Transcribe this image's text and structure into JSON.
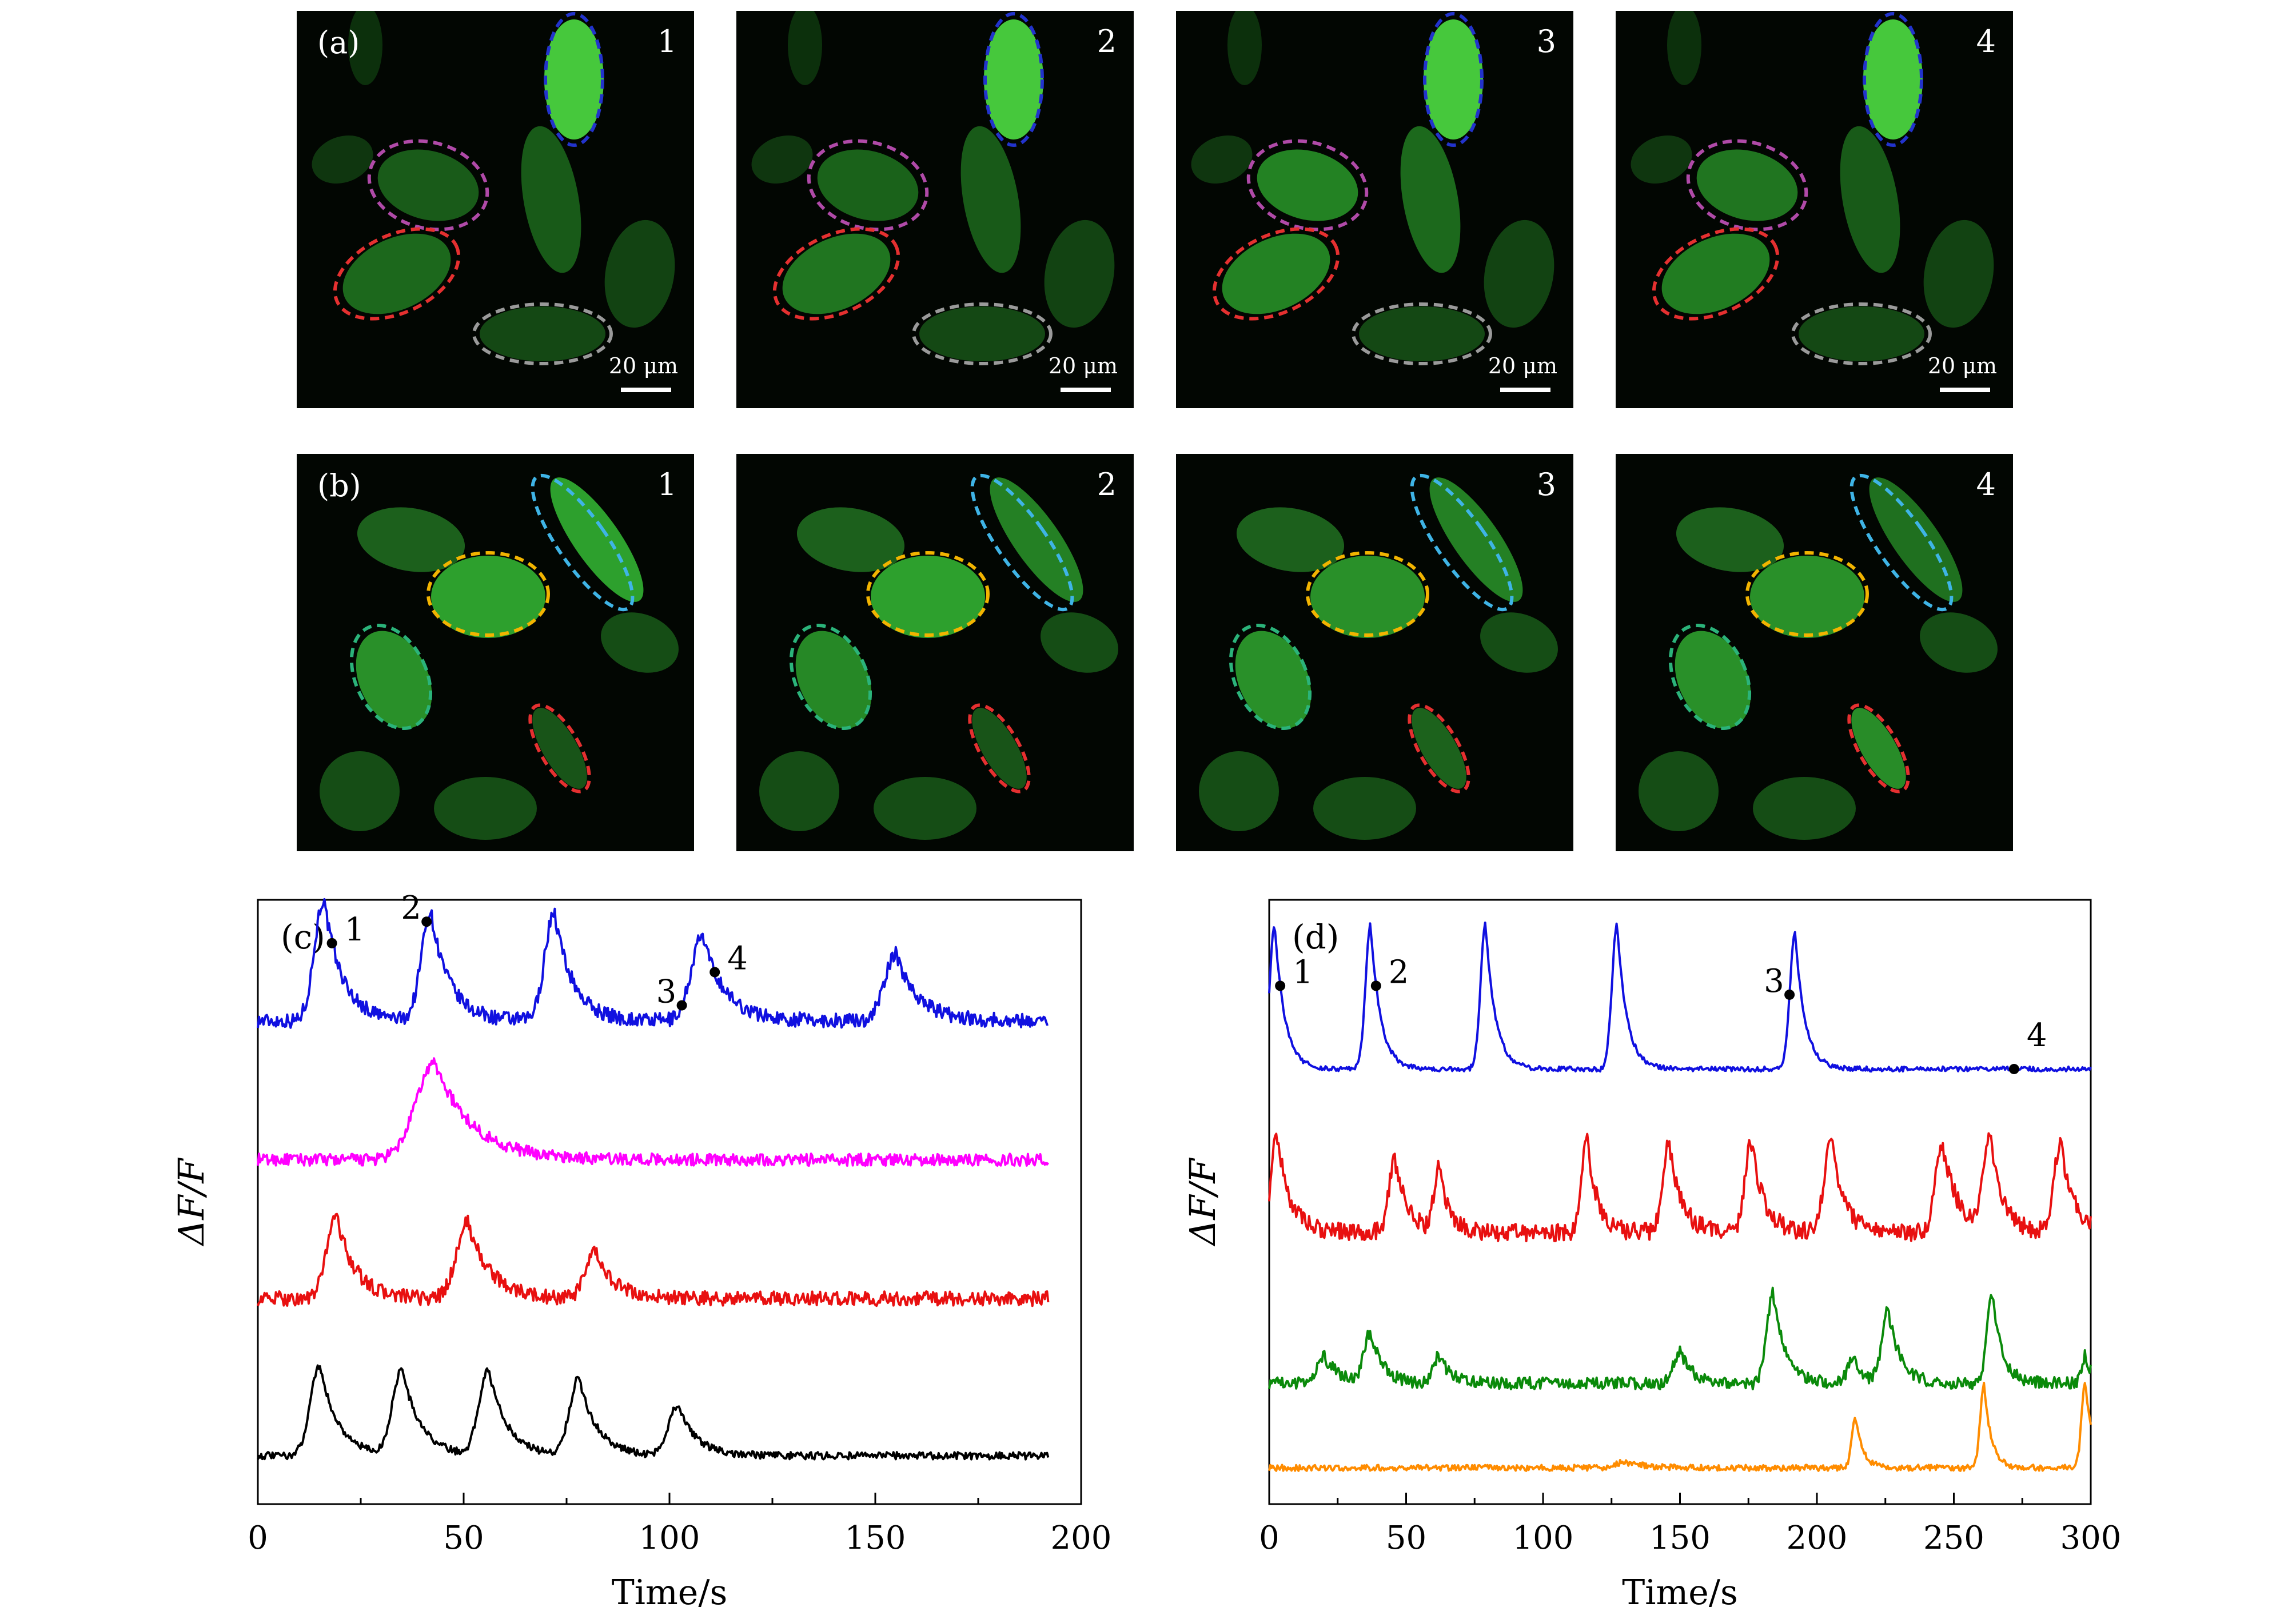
{
  "figure": {
    "row_a": {
      "label": "(a)",
      "frames": [
        "1",
        "2",
        "3",
        "4"
      ],
      "scale": "20 μm",
      "roi_colors": [
        "#2233cc",
        "#b04aa8",
        "#e53030",
        "#9a9a9a"
      ]
    },
    "row_b": {
      "label": "(b)",
      "frames": [
        "1",
        "2",
        "3",
        "4"
      ],
      "roi_colors": [
        "#3fb4e6",
        "#f2b400",
        "#2bb37a",
        "#e53030"
      ]
    }
  },
  "chart_data": [
    {
      "type": "line",
      "panel_label": "(c)",
      "xlabel": "Time/s",
      "ylabel": "ΔF/F",
      "xlim": [
        0,
        200
      ],
      "xticks": [
        "0",
        "50",
        "100",
        "150",
        "200"
      ],
      "yticks_shown": false,
      "series": [
        {
          "color": "#1010e0",
          "baseline": 0.8,
          "amplitude": 0.2,
          "noise": 0.012,
          "peaks": [
            [
              16,
              5
            ],
            [
              42,
              5
            ],
            [
              72,
              5
            ],
            [
              108,
              6
            ],
            [
              155,
              6
            ]
          ],
          "heights": [
            1.0,
            0.9,
            0.9,
            0.7,
            0.55
          ]
        },
        {
          "color": "#ff00ff",
          "baseline": 0.57,
          "amplitude": 0.16,
          "noise": 0.01,
          "peaks": [
            [
              43,
              10
            ]
          ],
          "heights": [
            1.0
          ]
        },
        {
          "color": "#e81010",
          "baseline": 0.34,
          "amplitude": 0.14,
          "noise": 0.012,
          "peaks": [
            [
              19,
              5
            ],
            [
              51,
              6
            ],
            [
              82,
              5
            ]
          ],
          "heights": [
            1.0,
            0.9,
            0.55
          ]
        },
        {
          "color": "#000000",
          "baseline": 0.08,
          "amplitude": 0.15,
          "noise": 0.006,
          "peaks": [
            [
              15,
              5
            ],
            [
              35,
              5
            ],
            [
              56,
              5
            ],
            [
              78,
              5
            ],
            [
              102,
              5
            ]
          ],
          "heights": [
            1.0,
            0.95,
            0.95,
            0.85,
            0.55
          ]
        }
      ],
      "markers": [
        {
          "label": "1",
          "x": 18
        },
        {
          "label": "2",
          "x": 41
        },
        {
          "label": "3",
          "x": 103
        },
        {
          "label": "4",
          "x": 111
        }
      ]
    },
    {
      "type": "line",
      "panel_label": "(d)",
      "xlabel": "Time/s",
      "ylabel": "ΔF/F",
      "xlim": [
        0,
        300
      ],
      "xticks": [
        "0",
        "50",
        "100",
        "150",
        "200",
        "250",
        "300"
      ],
      "yticks_shown": false,
      "series": [
        {
          "color": "#1010e0",
          "baseline": 0.72,
          "amplitude": 0.24,
          "noise": 0.004,
          "peaks": [
            [
              2,
              4
            ],
            [
              37,
              4
            ],
            [
              79,
              4
            ],
            [
              127,
              4
            ],
            [
              192,
              4
            ]
          ],
          "heights": [
            1.0,
            1.0,
            1.0,
            1.0,
            0.95
          ]
        },
        {
          "color": "#e81010",
          "baseline": 0.45,
          "amplitude": 0.16,
          "noise": 0.015,
          "peaks": [
            [
              3,
              5
            ],
            [
              46,
              5
            ],
            [
              62,
              4
            ],
            [
              116,
              4
            ],
            [
              146,
              5
            ],
            [
              176,
              5
            ],
            [
              205,
              5
            ],
            [
              246,
              6
            ],
            [
              263,
              5
            ],
            [
              289,
              5
            ]
          ],
          "heights": [
            1.0,
            0.75,
            0.65,
            1.0,
            0.9,
            0.95,
            1.0,
            0.9,
            1.0,
            0.95
          ]
        },
        {
          "color": "#0a8a0a",
          "baseline": 0.2,
          "amplitude": 0.15,
          "noise": 0.01,
          "peaks": [
            [
              20,
              6
            ],
            [
              37,
              5
            ],
            [
              62,
              5
            ],
            [
              150,
              5
            ],
            [
              184,
              5
            ],
            [
              213,
              4
            ],
            [
              226,
              5
            ],
            [
              264,
              4
            ],
            [
              298,
              3
            ]
          ],
          "heights": [
            0.3,
            0.55,
            0.3,
            0.35,
            1.0,
            0.3,
            0.8,
            1.0,
            0.3
          ]
        },
        {
          "color": "#ff8c00",
          "baseline": 0.06,
          "amplitude": 0.14,
          "noise": 0.005,
          "peaks": [
            [
              130,
              8
            ],
            [
              214,
              3
            ],
            [
              261,
              3
            ],
            [
              298,
              3
            ]
          ],
          "heights": [
            0.07,
            0.6,
            1.0,
            1.0
          ]
        }
      ],
      "markers": [
        {
          "label": "1",
          "x": 4
        },
        {
          "label": "2",
          "x": 39
        },
        {
          "label": "3",
          "x": 190
        },
        {
          "label": "4",
          "x": 272
        }
      ]
    }
  ]
}
